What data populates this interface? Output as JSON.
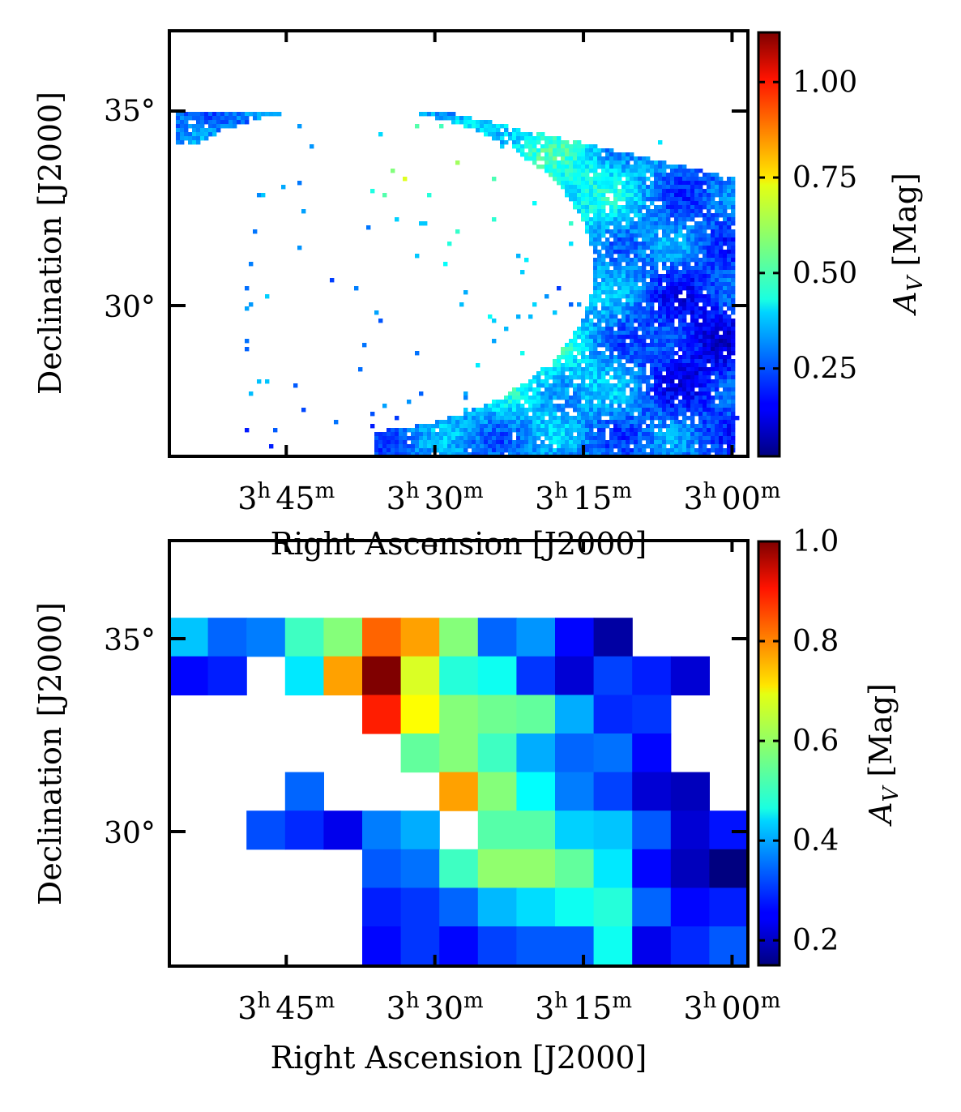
{
  "chart_data": [
    {
      "type": "heatmap",
      "panel": "top",
      "resolution": "high (~0.1 deg pixels)",
      "xlabel": "Right Ascension [J2000]",
      "ylabel": "Declination [J2000]",
      "x_ticks": [
        {
          "h": "3",
          "m": "45",
          "ra_deg": 56.25
        },
        {
          "h": "3",
          "m": "30",
          "ra_deg": 52.5
        },
        {
          "h": "3",
          "m": "15",
          "ra_deg": 48.75
        },
        {
          "h": "3",
          "m": "00",
          "ra_deg": 45.0
        }
      ],
      "y_ticks": [
        {
          "label": "35°",
          "dec_deg": 35
        },
        {
          "label": "30°",
          "dec_deg": 30
        }
      ],
      "xlim_ra_deg": [
        59.2,
        44.6
      ],
      "ylim_dec_deg": [
        26.2,
        37.0
      ],
      "colorbar": {
        "label": "A",
        "label_sub": "V",
        "label_units": " [Mag]",
        "min": 0.02,
        "max": 1.13,
        "ticks": [
          {
            "v": 0.25,
            "t": "0.25"
          },
          {
            "v": 0.5,
            "t": "0.50"
          },
          {
            "v": 0.75,
            "t": "0.75"
          },
          {
            "v": 1.0,
            "t": "1.00"
          }
        ],
        "colormap": "jet"
      },
      "regions_note": "Patchy extinction map: low values (~0.2) toward west/lower right, peak ~1.1 near RA 3h30m, Dec 34°; empty (white) area in the center-left"
    },
    {
      "type": "heatmap",
      "panel": "bottom",
      "resolution": "low (~1 deg pixels)",
      "xlabel": "Right Ascension [J2000]",
      "ylabel": "Declination [J2000]",
      "x_ticks": [
        {
          "h": "3",
          "m": "45",
          "ra_deg": 56.25
        },
        {
          "h": "3",
          "m": "30",
          "ra_deg": 52.5
        },
        {
          "h": "3",
          "m": "15",
          "ra_deg": 48.75
        },
        {
          "h": "3",
          "m": "00",
          "ra_deg": 45.0
        }
      ],
      "y_ticks": [
        {
          "label": "35°",
          "dec_deg": 35
        },
        {
          "label": "30°",
          "dec_deg": 30
        }
      ],
      "colorbar": {
        "label": "A",
        "label_sub": "V",
        "label_units": " [Mag]",
        "min": 0.15,
        "max": 1.0,
        "ticks": [
          {
            "v": 0.2,
            "t": "0.2"
          },
          {
            "v": 0.4,
            "t": "0.4"
          },
          {
            "v": 0.6,
            "t": "0.6"
          },
          {
            "v": 0.8,
            "t": "0.8"
          },
          {
            "v": 1.0,
            "t": "1.0"
          }
        ],
        "colormap": "jet"
      },
      "grid_columns_ra": "15 columns from RA ~59.2 deg (left) to ~44.6 deg (right)",
      "grid_rows_dec": "Rows from Dec ~35.6 (top) down to ~26.6 (bottom)",
      "cells": [
        [
          null,
          null,
          null,
          null,
          null,
          null,
          null,
          null,
          null,
          null,
          null,
          null,
          null,
          null,
          null
        ],
        [
          null,
          null,
          null,
          null,
          null,
          null,
          null,
          null,
          null,
          null,
          null,
          null,
          null,
          null,
          null
        ],
        [
          0.42,
          0.34,
          0.36,
          0.52,
          0.58,
          0.81,
          0.76,
          0.58,
          0.34,
          0.38,
          0.26,
          0.18,
          null,
          null,
          null
        ],
        [
          0.26,
          0.28,
          null,
          0.45,
          0.76,
          1.0,
          0.65,
          0.5,
          0.48,
          0.3,
          0.22,
          0.31,
          0.28,
          0.22,
          null
        ],
        [
          null,
          null,
          null,
          null,
          null,
          0.87,
          0.68,
          0.58,
          0.56,
          0.55,
          0.4,
          0.29,
          0.3,
          null,
          null
        ],
        [
          null,
          null,
          null,
          null,
          null,
          null,
          0.55,
          0.58,
          0.52,
          0.4,
          0.34,
          0.35,
          0.26,
          null,
          null
        ],
        [
          null,
          null,
          null,
          0.34,
          null,
          null,
          null,
          0.76,
          0.58,
          0.47,
          0.36,
          0.31,
          0.22,
          0.2,
          null
        ],
        [
          null,
          null,
          0.32,
          0.29,
          0.24,
          0.36,
          0.4,
          null,
          0.54,
          0.54,
          0.43,
          0.42,
          0.33,
          0.22,
          0.27
        ],
        [
          null,
          null,
          null,
          null,
          null,
          0.33,
          0.35,
          0.52,
          0.59,
          0.59,
          0.55,
          0.45,
          0.26,
          0.2,
          0.15
        ],
        [
          null,
          null,
          null,
          null,
          null,
          0.28,
          0.3,
          0.34,
          0.41,
          0.44,
          0.48,
          0.5,
          0.34,
          0.26,
          0.28
        ],
        [
          null,
          null,
          null,
          null,
          null,
          0.26,
          0.3,
          0.26,
          0.31,
          0.33,
          0.33,
          0.48,
          0.24,
          0.29,
          0.33
        ]
      ]
    }
  ]
}
